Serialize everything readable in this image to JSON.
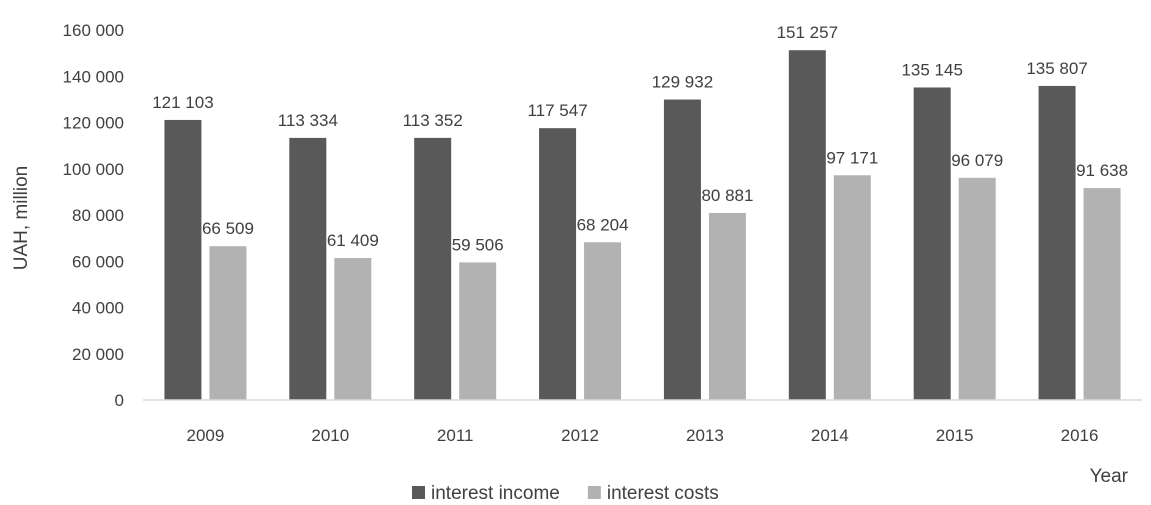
{
  "chart_data": {
    "type": "bar",
    "categories": [
      "2009",
      "2010",
      "2011",
      "2012",
      "2013",
      "2014",
      "2015",
      "2016"
    ],
    "series": [
      {
        "name": "interest income",
        "values": [
          121103,
          113334,
          113352,
          117547,
          129932,
          151257,
          135145,
          135807
        ],
        "labels": [
          "121 103",
          "113 334",
          "113 352",
          "117 547",
          "129 932",
          "151 257",
          "135 145",
          "135 807"
        ],
        "color": "#595959"
      },
      {
        "name": "interest costs",
        "values": [
          66509,
          61409,
          59506,
          68204,
          80881,
          97171,
          96079,
          91638
        ],
        "labels": [
          "66 509",
          "61 409",
          "59 506",
          "68 204",
          "80 881",
          "97 171",
          "96 079",
          "91 638"
        ],
        "color": "#b2b2b2"
      }
    ],
    "ylabel": "UAH, million",
    "xlabel": "Year",
    "ylim": [
      0,
      160000
    ],
    "yticks": [
      0,
      20000,
      40000,
      60000,
      80000,
      100000,
      120000,
      140000,
      160000
    ],
    "ytick_labels": [
      "0",
      "20 000",
      "40 000",
      "60 000",
      "80 000",
      "100 000",
      "120 000",
      "140 000",
      "160 000"
    ],
    "grid": false,
    "legend_position": "bottom"
  }
}
